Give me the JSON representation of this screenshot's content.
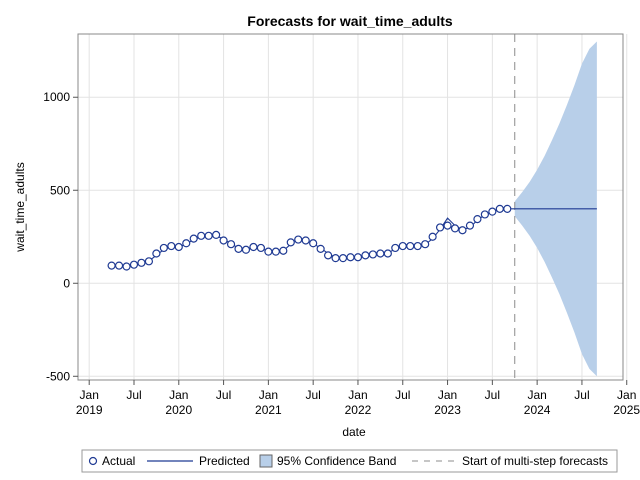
{
  "chart_data": {
    "type": "line",
    "title": "Forecasts for wait_time_adults",
    "xlabel": "date",
    "ylabel": "wait_time_adults",
    "ylim": [
      -520,
      1340
    ],
    "yticks": [
      -500,
      0,
      500,
      1000
    ],
    "xlim": [
      -1.5,
      71.5
    ],
    "xticks": [
      {
        "x": 0,
        "line1": "Jan",
        "line2": "2019"
      },
      {
        "x": 6,
        "line1": "Jul",
        "line2": ""
      },
      {
        "x": 12,
        "line1": "Jan",
        "line2": "2020"
      },
      {
        "x": 18,
        "line1": "Jul",
        "line2": ""
      },
      {
        "x": 24,
        "line1": "Jan",
        "line2": "2021"
      },
      {
        "x": 30,
        "line1": "Jul",
        "line2": ""
      },
      {
        "x": 36,
        "line1": "Jan",
        "line2": "2022"
      },
      {
        "x": 42,
        "line1": "Jul",
        "line2": ""
      },
      {
        "x": 48,
        "line1": "Jan",
        "line2": "2023"
      },
      {
        "x": 54,
        "line1": "Jul",
        "line2": ""
      },
      {
        "x": 60,
        "line1": "Jan",
        "line2": "2024"
      },
      {
        "x": 66,
        "line1": "Jul",
        "line2": ""
      },
      {
        "x": 72,
        "line1": "Jan",
        "line2": "2025"
      }
    ],
    "grid": true,
    "forecast_start_x": 57,
    "actual": {
      "name": "Actual",
      "x": [
        3,
        4,
        5,
        6,
        7,
        8,
        9,
        10,
        11,
        12,
        13,
        14,
        15,
        16,
        17,
        18,
        19,
        20,
        21,
        22,
        23,
        24,
        25,
        26,
        27,
        28,
        29,
        30,
        31,
        32,
        33,
        34,
        35,
        36,
        37,
        38,
        39,
        40,
        41,
        42,
        43,
        44,
        45,
        46,
        47,
        48,
        49,
        50,
        51,
        52,
        53,
        54,
        55,
        56
      ],
      "y": [
        95,
        95,
        90,
        100,
        110,
        118,
        160,
        190,
        200,
        195,
        215,
        240,
        255,
        255,
        260,
        230,
        210,
        185,
        180,
        195,
        190,
        170,
        170,
        175,
        220,
        235,
        230,
        215,
        185,
        150,
        135,
        135,
        140,
        140,
        150,
        155,
        160,
        160,
        190,
        200,
        200,
        200,
        210,
        250,
        300,
        310,
        295,
        285,
        310,
        345,
        370,
        385,
        400,
        400
      ]
    },
    "predicted": {
      "name": "Predicted",
      "x": [
        3,
        4,
        5,
        6,
        7,
        8,
        9,
        10,
        11,
        12,
        13,
        14,
        15,
        16,
        17,
        18,
        19,
        20,
        21,
        22,
        23,
        24,
        25,
        26,
        27,
        28,
        29,
        30,
        31,
        32,
        33,
        34,
        35,
        36,
        37,
        38,
        39,
        40,
        41,
        42,
        43,
        44,
        45,
        46,
        47,
        48,
        49,
        50,
        51,
        52,
        53,
        54,
        55,
        56,
        57,
        58,
        59,
        60,
        61,
        62,
        63,
        64,
        65,
        66,
        67,
        68
      ],
      "y": [
        98,
        96,
        92,
        98,
        108,
        120,
        150,
        182,
        197,
        196,
        210,
        236,
        250,
        252,
        255,
        238,
        212,
        190,
        182,
        190,
        188,
        173,
        168,
        175,
        210,
        245,
        232,
        212,
        190,
        160,
        138,
        132,
        136,
        140,
        148,
        153,
        158,
        162,
        185,
        198,
        200,
        200,
        208,
        240,
        290,
        350,
        310,
        288,
        300,
        340,
        368,
        385,
        398,
        400,
        400,
        400,
        400,
        400,
        400,
        400,
        400,
        400,
        400,
        400,
        400,
        400
      ]
    },
    "confidence_band": {
      "name": "95% Confidence Band",
      "x": [
        57,
        58,
        59,
        60,
        61,
        62,
        63,
        64,
        65,
        66,
        67,
        68
      ],
      "lower": [
        360,
        310,
        255,
        190,
        115,
        30,
        -60,
        -160,
        -265,
        -380,
        -460,
        -500
      ],
      "upper": [
        440,
        490,
        545,
        610,
        685,
        770,
        860,
        960,
        1065,
        1180,
        1260,
        1300
      ]
    },
    "legend": {
      "position": "bottom",
      "items": [
        "Actual",
        "Predicted",
        "95% Confidence Band",
        "Start of multi-step forecasts"
      ]
    },
    "colors": {
      "line": "#1f3a93",
      "marker_edge": "#1f3a93",
      "band": "#b8cfe9",
      "band_edge": "#8aa9d6",
      "forecast_line": "#8c8c8c",
      "grid": "#e3e3e3",
      "frame": "#888888"
    }
  }
}
